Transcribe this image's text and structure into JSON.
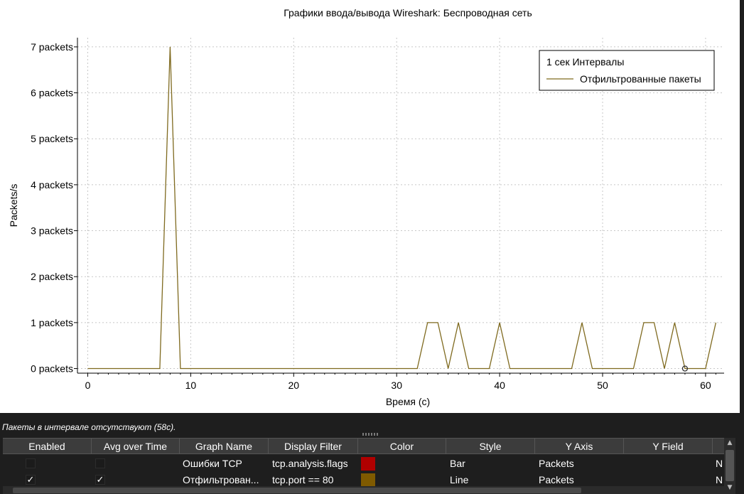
{
  "chart_data": {
    "type": "line",
    "title": "Графики ввода/вывода Wireshark: Беспроводная сеть",
    "xlabel": "Время (c)",
    "ylabel": "Packets/s",
    "xlim": [
      -1,
      61.8
    ],
    "ylim": [
      -0.1,
      7.2
    ],
    "x_ticks": [
      0,
      10,
      20,
      30,
      40,
      50,
      60
    ],
    "y_ticks": [
      {
        "value": 0,
        "label": "0 packets"
      },
      {
        "value": 1,
        "label": "1 packets"
      },
      {
        "value": 2,
        "label": "2 packets"
      },
      {
        "value": 3,
        "label": "3 packets"
      },
      {
        "value": 4,
        "label": "4 packets"
      },
      {
        "value": 5,
        "label": "5 packets"
      },
      {
        "value": 6,
        "label": "6 packets"
      },
      {
        "value": 7,
        "label": "7 packets"
      }
    ],
    "grid": true,
    "legend": {
      "placement": "top-right",
      "header": "1 сек Интервалы"
    },
    "series": [
      {
        "name": "Отфильтрованные пакеты",
        "color": "#7f6a1f",
        "x": [
          0,
          1,
          2,
          3,
          4,
          5,
          6,
          7,
          8,
          9,
          10,
          11,
          12,
          13,
          14,
          15,
          16,
          17,
          18,
          19,
          20,
          21,
          22,
          23,
          24,
          25,
          26,
          27,
          28,
          29,
          30,
          31,
          32,
          33,
          34,
          35,
          36,
          37,
          38,
          39,
          40,
          41,
          42,
          43,
          44,
          45,
          46,
          47,
          48,
          49,
          50,
          51,
          52,
          53,
          54,
          55,
          56,
          57,
          58,
          59,
          60,
          61
        ],
        "y": [
          0,
          0,
          0,
          0,
          0,
          0,
          0,
          0,
          7,
          0,
          0,
          0,
          0,
          0,
          0,
          0,
          0,
          0,
          0,
          0,
          0,
          0,
          0,
          0,
          0,
          0,
          0,
          0,
          0,
          0,
          0,
          0,
          0,
          1,
          1,
          0,
          1,
          0,
          0,
          0,
          1,
          0,
          0,
          0,
          0,
          0,
          0,
          0,
          1,
          0,
          0,
          0,
          0,
          0,
          1,
          1,
          0,
          1,
          0,
          0,
          0,
          1
        ]
      }
    ],
    "marker": {
      "x": 58,
      "y": 0
    }
  },
  "status_text": "Пакеты в интервале отсутствуют (58c).",
  "table": {
    "headers": [
      "Enabled",
      "Avg over Time",
      "Graph Name",
      "Display Filter",
      "Color",
      "Style",
      "Y Axis",
      "Y Field"
    ],
    "rows": [
      {
        "enabled": "",
        "avg": "",
        "name": "Ошибки TCP",
        "filter": "tcp.analysis.flags",
        "color": "#b00000",
        "style": "Bar",
        "y_axis": "Packets",
        "y_field": "N"
      },
      {
        "enabled": "✓",
        "avg": "✓",
        "name": "Отфильтрован...",
        "filter": "tcp.port == 80",
        "color": "#7f5a00",
        "style": "Line",
        "y_axis": "Packets",
        "y_field": "N"
      }
    ]
  }
}
